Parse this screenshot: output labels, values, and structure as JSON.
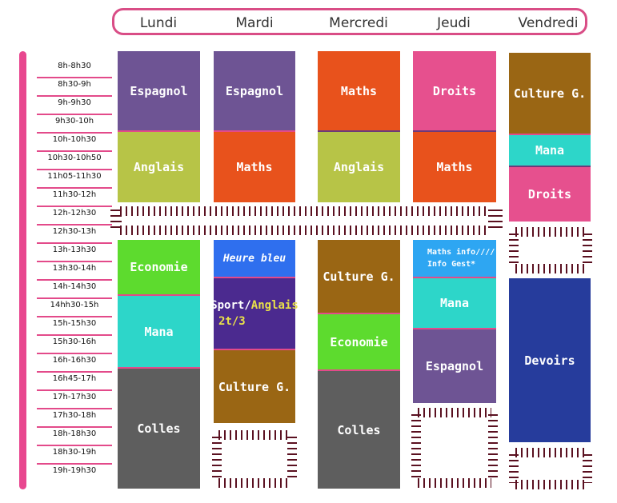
{
  "days": [
    "Lundi",
    "Mardi",
    "Mercredi",
    "Jeudi",
    "Vendredi"
  ],
  "times": [
    "8h-8h30",
    "8h30-9h",
    "9h-9h30",
    "9h30-10h",
    "10h-10h30",
    "10h30-10h50",
    "11h05-11h30",
    "11h30-12h",
    "12h-12h30",
    "12h30-13h",
    "13h-13h30",
    "13h30-14h",
    "14h-14h30",
    "14hh30-15h",
    "15h-15h30",
    "15h30-16h",
    "16h-16h30",
    "16h45-17h",
    "17h-17h30",
    "17h30-18h",
    "18h-18h30",
    "18h30-19h",
    "19h-19h30"
  ],
  "courses": {
    "lundi": [
      "Espagnol",
      "Anglais",
      "Economie",
      "Mana",
      "Colles"
    ],
    "mardi": [
      "Espagnol",
      "Maths",
      "Heure bleu",
      "Sport/",
      "Anglais",
      "2t/3",
      "Culture G."
    ],
    "mercredi": [
      "Maths",
      "Anglais",
      "Culture G.",
      "Economie",
      "Colles"
    ],
    "jeudi": [
      "Droits",
      "Maths",
      "Maths info////",
      "Info Gest*",
      "Mana",
      "Espagnol"
    ],
    "vendredi": [
      "Culture G.",
      "Mana",
      "Droits",
      "Devoirs"
    ]
  },
  "colors": {
    "purple": "#6e5494",
    "olive": "#b7c447",
    "orange": "#e8521c",
    "pink": "#e6508e",
    "brown": "#9a6614",
    "cyan": "#2dd6c9",
    "green": "#5ddb2e",
    "gray": "#5e5e5e",
    "blue": "#2f6fee",
    "violet": "#4b2a8f",
    "lightblue": "#2ea6f2",
    "navy": "#263c9c",
    "yellow": "#e8e04a"
  }
}
